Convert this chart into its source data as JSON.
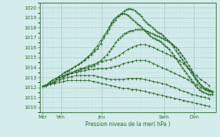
{
  "title": "Pression niveau de la mer( hPa )",
  "ylim": [
    1009.5,
    1020.5
  ],
  "yticks": [
    1010,
    1011,
    1012,
    1013,
    1014,
    1015,
    1016,
    1017,
    1018,
    1019,
    1020
  ],
  "bg_color": "#d4ecec",
  "grid_major_color": "#aacccc",
  "grid_minor_color": "#c0dddd",
  "line_color": "#2d6a2d",
  "series": [
    {
      "x": [
        0.05,
        0.15,
        0.25,
        0.35,
        0.5,
        0.65,
        0.8,
        0.95,
        1.05,
        1.15,
        1.25,
        1.4,
        1.55,
        1.7,
        1.85,
        2.0,
        2.15,
        2.3,
        2.45,
        2.6,
        2.75,
        2.9,
        3.05,
        3.15,
        3.25,
        3.35,
        3.45,
        3.55,
        3.65,
        3.75,
        3.85,
        3.95,
        4.05,
        4.15,
        4.25,
        4.35,
        4.45,
        4.55,
        4.65,
        4.75,
        4.85,
        4.95,
        5.05,
        5.15,
        5.25,
        5.35,
        5.45,
        5.55,
        5.65,
        5.75,
        5.85,
        5.95,
        6.05,
        6.15,
        6.25,
        6.35,
        6.45,
        6.55,
        6.65,
        6.75,
        6.85,
        6.95,
        7.05,
        7.15,
        7.25,
        7.35,
        7.45,
        7.55,
        7.65,
        7.75,
        7.85,
        7.95
      ],
      "y": [
        1012.1,
        1012.2,
        1012.3,
        1012.5,
        1012.7,
        1012.9,
        1013.1,
        1013.3,
        1013.5,
        1013.6,
        1013.7,
        1013.9,
        1014.1,
        1014.3,
        1014.5,
        1014.7,
        1015.0,
        1015.3,
        1015.6,
        1015.9,
        1016.4,
        1017.0,
        1017.5,
        1017.9,
        1018.3,
        1018.6,
        1018.8,
        1019.1,
        1019.3,
        1019.5,
        1019.7,
        1019.8,
        1019.9,
        1019.9,
        1019.8,
        1019.7,
        1019.5,
        1019.3,
        1019.1,
        1018.8,
        1018.6,
        1018.4,
        1018.2,
        1018.0,
        1017.8,
        1017.6,
        1017.5,
        1017.4,
        1017.2,
        1017.0,
        1016.8,
        1016.6,
        1016.3,
        1016.0,
        1015.7,
        1015.4,
        1015.1,
        1014.8,
        1014.5,
        1014.2,
        1013.8,
        1013.5,
        1013.2,
        1012.9,
        1012.6,
        1012.4,
        1012.2,
        1012.0,
        1011.9,
        1011.8,
        1011.7,
        1011.6
      ]
    },
    {
      "x": [
        0.05,
        0.15,
        0.25,
        0.35,
        0.5,
        0.65,
        0.8,
        0.95,
        1.05,
        1.15,
        1.25,
        1.4,
        1.55,
        1.7,
        1.85,
        2.0,
        2.15,
        2.3,
        2.45,
        2.6,
        2.75,
        2.9,
        3.05,
        3.15,
        3.25,
        3.35,
        3.45,
        3.55,
        3.65,
        3.75,
        3.85,
        3.95,
        4.05,
        4.15,
        4.25,
        4.35,
        4.45,
        4.55,
        4.65,
        4.75,
        4.85,
        4.95,
        5.05,
        5.15,
        5.25,
        5.35,
        5.45,
        5.55,
        5.65,
        5.75,
        5.85,
        5.95,
        6.05,
        6.15,
        6.25,
        6.35,
        6.45,
        6.55,
        6.65,
        6.75,
        6.85,
        6.95,
        7.05,
        7.15,
        7.25,
        7.35,
        7.45,
        7.55,
        7.65,
        7.75,
        7.85,
        7.95
      ],
      "y": [
        1012.1,
        1012.2,
        1012.3,
        1012.5,
        1012.7,
        1012.9,
        1013.1,
        1013.3,
        1013.5,
        1013.6,
        1013.7,
        1013.9,
        1014.1,
        1014.3,
        1014.5,
        1014.8,
        1015.1,
        1015.4,
        1015.8,
        1016.2,
        1016.7,
        1017.2,
        1017.7,
        1018.1,
        1018.5,
        1018.8,
        1019.0,
        1019.2,
        1019.3,
        1019.4,
        1019.4,
        1019.3,
        1019.2,
        1019.0,
        1018.8,
        1018.6,
        1018.4,
        1018.2,
        1018.0,
        1017.8,
        1017.6,
        1017.4,
        1017.2,
        1017.0,
        1016.9,
        1016.8,
        1016.7,
        1016.6,
        1016.4,
        1016.2,
        1016.0,
        1015.8,
        1015.5,
        1015.2,
        1014.9,
        1014.6,
        1014.3,
        1014.0,
        1013.7,
        1013.4,
        1013.1,
        1012.8,
        1012.5,
        1012.2,
        1012.0,
        1011.8,
        1011.6,
        1011.5,
        1011.4,
        1011.3,
        1011.3,
        1011.3
      ]
    },
    {
      "x": [
        0.05,
        0.15,
        0.25,
        0.35,
        0.5,
        0.65,
        0.8,
        0.95,
        1.05,
        1.15,
        1.25,
        1.4,
        1.55,
        1.7,
        1.85,
        2.0,
        2.15,
        2.3,
        2.45,
        2.6,
        2.75,
        2.9,
        3.05,
        3.15,
        3.25,
        3.35,
        3.45,
        3.55,
        3.65,
        3.75,
        3.85,
        3.95,
        4.05,
        4.15,
        4.25,
        4.35,
        4.45,
        4.55,
        4.65,
        4.75,
        4.85,
        4.95,
        5.05,
        5.15,
        5.25,
        5.35,
        5.45,
        5.55,
        5.65,
        5.75,
        5.85,
        5.95,
        6.05,
        6.15,
        6.25,
        6.35,
        6.45,
        6.55,
        6.65,
        6.75,
        6.85,
        6.95,
        7.05,
        7.15,
        7.25,
        7.35,
        7.45,
        7.55,
        7.65,
        7.75,
        7.85,
        7.95
      ],
      "y": [
        1012.1,
        1012.2,
        1012.3,
        1012.5,
        1012.7,
        1012.9,
        1013.0,
        1013.1,
        1013.2,
        1013.3,
        1013.4,
        1013.5,
        1013.6,
        1013.7,
        1013.8,
        1013.9,
        1014.0,
        1014.1,
        1014.2,
        1014.4,
        1014.7,
        1015.0,
        1015.3,
        1015.6,
        1015.9,
        1016.2,
        1016.5,
        1016.8,
        1017.0,
        1017.2,
        1017.4,
        1017.5,
        1017.6,
        1017.7,
        1017.7,
        1017.8,
        1017.8,
        1017.8,
        1017.8,
        1017.8,
        1017.7,
        1017.6,
        1017.5,
        1017.4,
        1017.3,
        1017.2,
        1017.1,
        1017.0,
        1016.9,
        1016.8,
        1016.7,
        1016.6,
        1016.4,
        1016.2,
        1016.0,
        1015.8,
        1015.5,
        1015.2,
        1014.9,
        1014.6,
        1014.2,
        1013.8,
        1013.4,
        1013.0,
        1012.7,
        1012.4,
        1012.2,
        1012.0,
        1011.8,
        1011.7,
        1011.6,
        1011.5
      ]
    },
    {
      "x": [
        0.05,
        0.2,
        0.4,
        0.6,
        0.8,
        1.0,
        1.2,
        1.4,
        1.6,
        1.8,
        2.0,
        2.2,
        2.4,
        2.6,
        2.8,
        3.0,
        3.2,
        3.4,
        3.6,
        3.8,
        4.0,
        4.2,
        4.4,
        4.6,
        4.8,
        5.0,
        5.2,
        5.4,
        5.6,
        5.8,
        6.0,
        6.2,
        6.4,
        6.6,
        6.8,
        7.0,
        7.2,
        7.4,
        7.6,
        7.8
      ],
      "y": [
        1012.1,
        1012.2,
        1012.4,
        1012.6,
        1012.9,
        1013.1,
        1013.3,
        1013.5,
        1013.7,
        1013.9,
        1014.0,
        1014.2,
        1014.3,
        1014.5,
        1014.6,
        1014.7,
        1014.8,
        1015.0,
        1015.2,
        1015.5,
        1015.8,
        1016.0,
        1016.2,
        1016.3,
        1016.3,
        1016.2,
        1016.0,
        1015.8,
        1015.6,
        1015.4,
        1015.2,
        1015.0,
        1014.7,
        1014.4,
        1014.0,
        1013.6,
        1013.2,
        1012.8,
        1012.5,
        1012.2
      ]
    },
    {
      "x": [
        0.05,
        0.2,
        0.4,
        0.6,
        0.8,
        1.0,
        1.2,
        1.4,
        1.6,
        1.8,
        2.0,
        2.2,
        2.4,
        2.6,
        2.8,
        3.0,
        3.2,
        3.4,
        3.6,
        3.8,
        4.0,
        4.2,
        4.4,
        4.6,
        4.8,
        5.0,
        5.2,
        5.4,
        5.6,
        5.8,
        6.0,
        6.2,
        6.4,
        6.6,
        6.8,
        7.0,
        7.2,
        7.4,
        7.6,
        7.8
      ],
      "y": [
        1012.1,
        1012.2,
        1012.4,
        1012.6,
        1012.9,
        1013.1,
        1013.3,
        1013.4,
        1013.5,
        1013.6,
        1013.7,
        1013.8,
        1013.8,
        1013.9,
        1013.9,
        1013.9,
        1014.0,
        1014.1,
        1014.2,
        1014.4,
        1014.5,
        1014.6,
        1014.7,
        1014.7,
        1014.7,
        1014.6,
        1014.4,
        1014.2,
        1014.0,
        1013.8,
        1013.6,
        1013.4,
        1013.2,
        1013.0,
        1012.8,
        1012.5,
        1012.3,
        1012.0,
        1011.8,
        1011.6
      ]
    },
    {
      "x": [
        0.05,
        0.2,
        0.4,
        0.6,
        0.8,
        1.0,
        1.2,
        1.4,
        1.6,
        1.8,
        2.0,
        2.2,
        2.4,
        2.6,
        2.8,
        3.0,
        3.2,
        3.4,
        3.6,
        3.8,
        4.0,
        4.2,
        4.4,
        4.6,
        4.8,
        5.0,
        5.2,
        5.4,
        5.6,
        5.8,
        6.0,
        6.2,
        6.4,
        6.6,
        6.8,
        7.0,
        7.2,
        7.4,
        7.6,
        7.8
      ],
      "y": [
        1012.1,
        1012.2,
        1012.3,
        1012.5,
        1012.7,
        1012.9,
        1013.0,
        1013.1,
        1013.2,
        1013.2,
        1013.2,
        1013.2,
        1013.2,
        1013.1,
        1013.0,
        1012.9,
        1012.8,
        1012.8,
        1012.8,
        1012.8,
        1012.9,
        1012.9,
        1012.9,
        1012.9,
        1012.8,
        1012.7,
        1012.6,
        1012.5,
        1012.4,
        1012.3,
        1012.1,
        1012.0,
        1011.8,
        1011.6,
        1011.5,
        1011.3,
        1011.2,
        1011.1,
        1011.0,
        1010.9
      ]
    },
    {
      "x": [
        0.05,
        0.2,
        0.4,
        0.6,
        0.8,
        1.0,
        1.2,
        1.4,
        1.6,
        1.8,
        2.0,
        2.2,
        2.4,
        2.6,
        2.8,
        3.0,
        3.2,
        3.4,
        3.6,
        3.8,
        4.0,
        4.2,
        4.4,
        4.6,
        4.8,
        5.0,
        5.2,
        5.4,
        5.6,
        5.8,
        6.0,
        6.2,
        6.4,
        6.6,
        6.8,
        7.0,
        7.2,
        7.4,
        7.6,
        7.8
      ],
      "y": [
        1012.1,
        1012.2,
        1012.3,
        1012.4,
        1012.5,
        1012.6,
        1012.7,
        1012.7,
        1012.7,
        1012.7,
        1012.7,
        1012.7,
        1012.6,
        1012.5,
        1012.4,
        1012.3,
        1012.2,
        1012.1,
        1012.0,
        1011.9,
        1011.9,
        1011.8,
        1011.8,
        1011.7,
        1011.6,
        1011.5,
        1011.4,
        1011.3,
        1011.2,
        1011.1,
        1011.0,
        1010.9,
        1010.8,
        1010.7,
        1010.6,
        1010.5,
        1010.4,
        1010.3,
        1010.2,
        1010.1
      ]
    }
  ],
  "xlim": [
    -0.1,
    8.1
  ],
  "xtick_day_positions": [
    0.05,
    0.9,
    2.8,
    5.7,
    7.1
  ],
  "xtick_day_labels": [
    "Mer",
    "Ven",
    "Jeu",
    "Sam",
    "Dim"
  ],
  "xlabel": "Pression niveau de la mer( hPa )"
}
